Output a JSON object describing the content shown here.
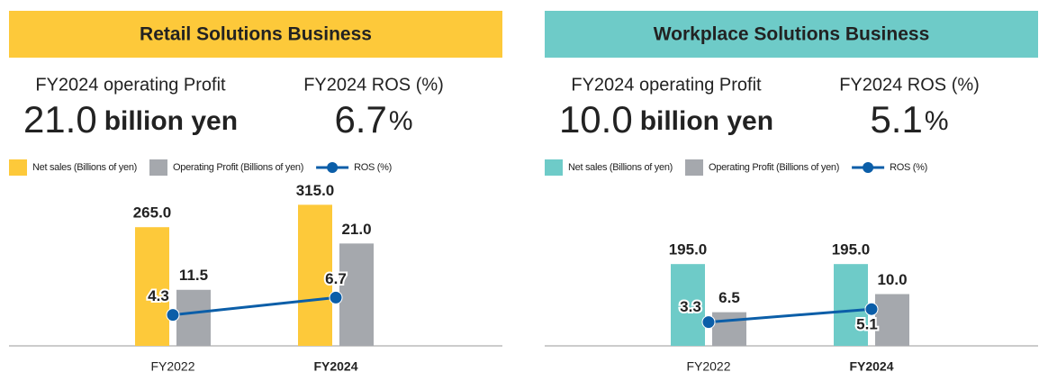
{
  "chart_data": [
    {
      "type": "bar",
      "title": "Retail Solutions Business",
      "header_color": "#fdc93a",
      "kpis": [
        {
          "label": "FY2024 operating Profit",
          "value": "21.0",
          "unit": "billion yen"
        },
        {
          "label": "FY2024 ROS (%)",
          "value": "6.7",
          "unit": "%"
        }
      ],
      "categories": [
        "FY2022",
        "FY2024"
      ],
      "series": [
        {
          "name": "Net sales (Billions of yen)",
          "color": "#fdc93a",
          "values": [
            265,
            315
          ],
          "value_labels": [
            "265.0",
            "315.0"
          ]
        },
        {
          "name": "Operating Profit (Billions of yen)",
          "color": "#a5a8ad",
          "axis": "y2",
          "values": [
            11.5,
            21
          ],
          "value_labels": [
            "11.5",
            "21.0"
          ]
        },
        {
          "name": "ROS (%)",
          "type": "line",
          "color": "#0b5ea8",
          "axis": "y3",
          "values": [
            4.3,
            6.7
          ]
        }
      ],
      "ylim": [
        0,
        370
      ],
      "y2lim": [
        0,
        34
      ],
      "y3lim": [
        0,
        23
      ]
    },
    {
      "type": "bar",
      "title": "Workplace Solutions Business",
      "header_color": "#6ecbc8",
      "kpis": [
        {
          "label": "FY2024 operating Profit",
          "value": "10.0",
          "unit": "billion yen"
        },
        {
          "label": "FY2024 ROS (%)",
          "value": "5.1",
          "unit": "%"
        }
      ],
      "categories": [
        "FY2022",
        "FY2024"
      ],
      "series": [
        {
          "name": "Net sales (Billions of yen)",
          "color": "#6ecbc8",
          "values": [
            195,
            195
          ],
          "value_labels": [
            "195.0",
            "195.0"
          ]
        },
        {
          "name": "Operating Profit (Billions of yen)",
          "color": "#a5a8ad",
          "axis": "y2",
          "values": [
            6.5,
            10
          ],
          "value_labels": [
            "6.5",
            "10.0"
          ]
        },
        {
          "name": "ROS (%)",
          "type": "line",
          "color": "#0b5ea8",
          "axis": "y3",
          "values": [
            3.3,
            5.1
          ]
        }
      ],
      "ylim": [
        0,
        395
      ],
      "y2lim": [
        0,
        32
      ],
      "y3lim": [
        0,
        23
      ]
    }
  ]
}
